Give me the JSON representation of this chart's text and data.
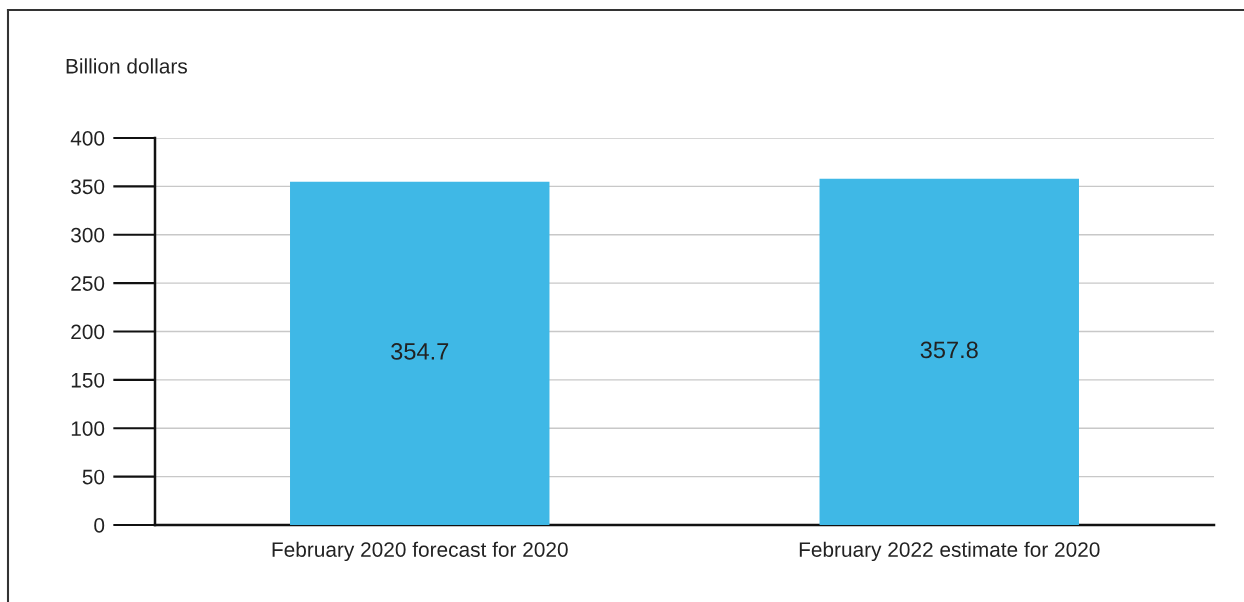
{
  "chart_data": {
    "type": "bar",
    "ylabel": "Billion dollars",
    "categories": [
      "February 2020 forecast for 2020",
      "February 2022 estimate for 2020"
    ],
    "values": [
      354.7,
      357.8
    ],
    "color": "#3fb8e6",
    "ylim": [
      0,
      400
    ],
    "yticks": [
      0,
      50,
      100,
      150,
      200,
      250,
      300,
      350,
      400
    ],
    "grid": "y",
    "data_labels": true,
    "legend": false
  }
}
